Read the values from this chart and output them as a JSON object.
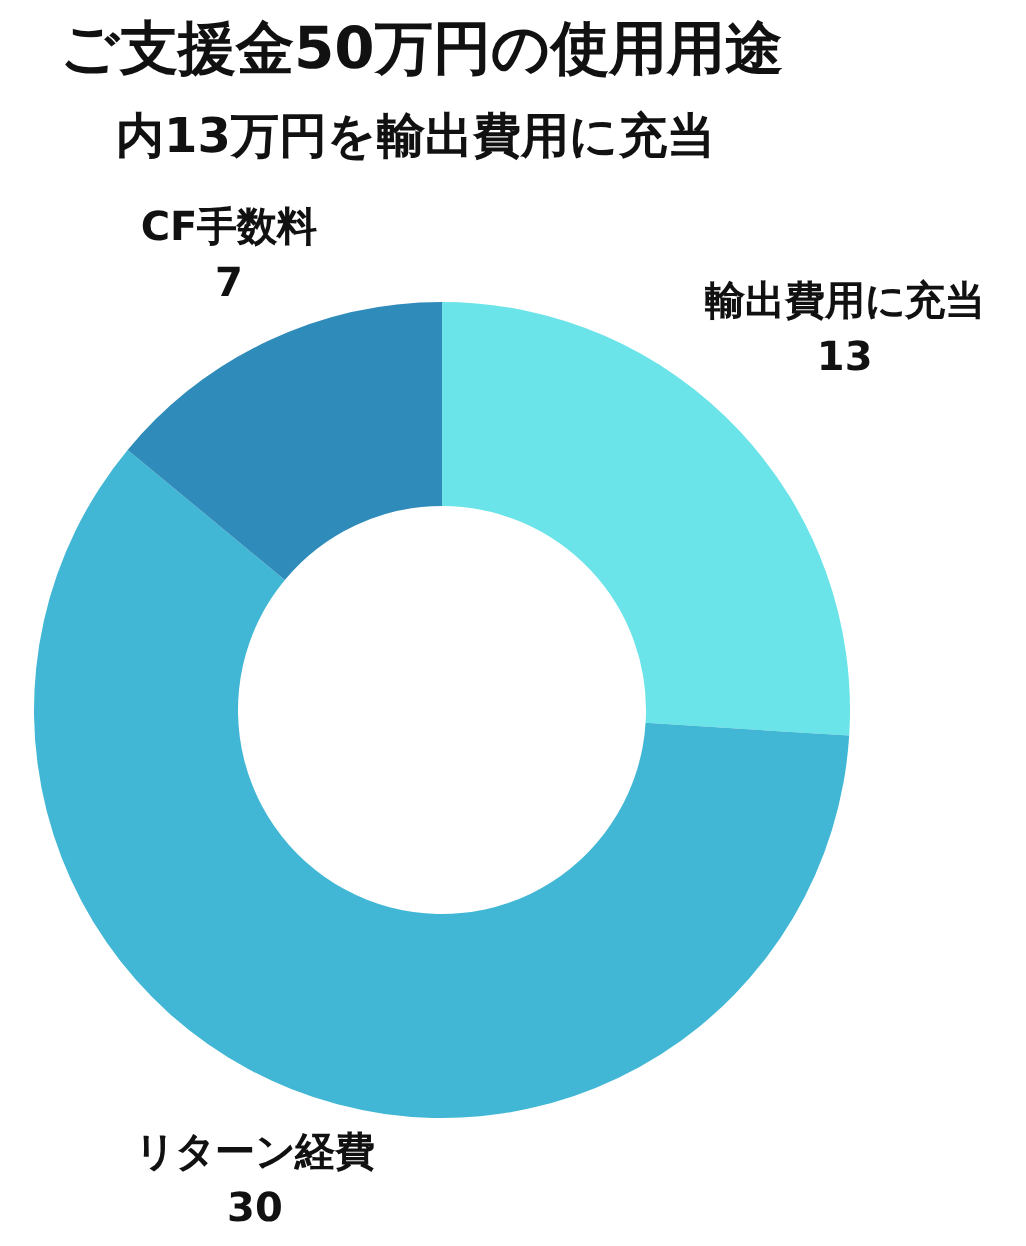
{
  "chart_data": {
    "type": "donut",
    "title": "ご支援金50万円の使用用途",
    "subtitle": "内13万円を輸出費用に充当",
    "categories": [
      "輸出費用に充当",
      "リターン経費",
      "CF手数料"
    ],
    "values": [
      13,
      30,
      7
    ],
    "colors": [
      "#6ae4e8",
      "#41b7d5",
      "#2e8bba"
    ],
    "data_labels": true
  }
}
